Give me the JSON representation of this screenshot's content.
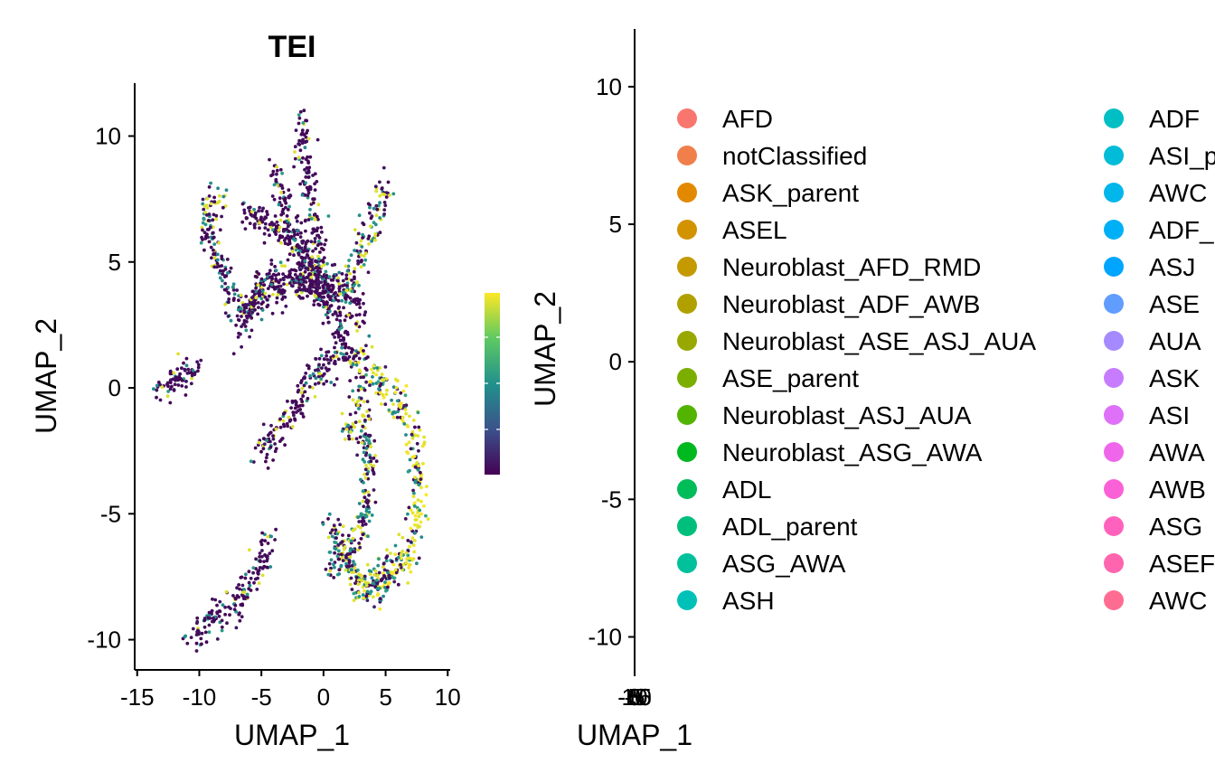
{
  "chart_data": [
    {
      "type": "scatter",
      "title": "TEI",
      "xlabel": "UMAP_1",
      "ylabel": "UMAP_2",
      "xlim": [
        -15.2,
        10.2
      ],
      "ylim": [
        -11.2,
        12.1
      ],
      "xticks": [
        -15,
        -10,
        -5,
        0,
        5,
        10
      ],
      "xtick_labels": [
        "-15",
        "-10",
        "-5",
        "0",
        "5",
        "10"
      ],
      "yticks": [
        -10,
        -5,
        0,
        5,
        10
      ],
      "ytick_labels": [
        "-10",
        "-5",
        "0",
        "5",
        "10"
      ],
      "colorscale": [
        "#440154",
        "#3b528b",
        "#21918c",
        "#5ec962",
        "#fde725"
      ],
      "colorbar": {
        "range": [
          0,
          1
        ]
      },
      "grid": false,
      "clusters": [
        {
          "path": [
            [
              -13.3,
              0.0
            ],
            [
              -11.2,
              0.5
            ],
            [
              -10.2,
              0.9
            ]
          ],
          "value": 0.25
        },
        {
          "path": [
            [
              -10.6,
              -9.9
            ],
            [
              -8.5,
              -9.0
            ],
            [
              -6.2,
              -8.2
            ],
            [
              -5.0,
              -7.0
            ],
            [
              -4.2,
              -6.0
            ]
          ],
          "value": 0.2
        },
        {
          "path": [
            [
              -5.2,
              -2.7
            ],
            [
              -3.5,
              -1.6
            ],
            [
              -2.0,
              -0.6
            ],
            [
              0.0,
              0.9
            ],
            [
              1.5,
              1.6
            ]
          ],
          "value": 0.1
        },
        {
          "path": [
            [
              -9.6,
              6.2
            ],
            [
              -9.2,
              7.3
            ],
            [
              -8.3,
              7.5
            ]
          ],
          "value": 0.5
        },
        {
          "path": [
            [
              -9.5,
              6.5
            ],
            [
              -8.4,
              5.0
            ],
            [
              -7.5,
              3.8
            ],
            [
              -6.5,
              3.0
            ],
            [
              -5.0,
              3.8
            ],
            [
              -3.0,
              4.0
            ],
            [
              -1.0,
              4.1
            ],
            [
              1.0,
              4.0
            ],
            [
              2.5,
              3.5
            ],
            [
              3.0,
              2.5
            ]
          ],
          "value": 0.1
        },
        {
          "path": [
            [
              -6.8,
              2.2
            ],
            [
              -5.5,
              3.8
            ],
            [
              -4.0,
              4.3
            ],
            [
              -2.5,
              4.4
            ],
            [
              -1.0,
              4.0
            ],
            [
              0.5,
              3.6
            ],
            [
              1.5,
              2.2
            ],
            [
              2.0,
              0.8
            ]
          ],
          "value": 0.05
        },
        {
          "path": [
            [
              -6.5,
              6.8
            ],
            [
              -5.0,
              6.8
            ],
            [
              -4.5,
              6.5
            ],
            [
              -3.2,
              6.0
            ],
            [
              -1.8,
              5.2
            ],
            [
              0.0,
              4.0
            ]
          ],
          "value": 0.05
        },
        {
          "path": [
            [
              -2.0,
              10.8
            ],
            [
              -1.5,
              9.0
            ],
            [
              -1.0,
              7.2
            ],
            [
              -0.2,
              5.0
            ],
            [
              0.5,
              3.5
            ]
          ],
          "value": 0.1
        },
        {
          "path": [
            [
              -4.0,
              8.8
            ],
            [
              -3.2,
              7.2
            ],
            [
              -2.2,
              6.0
            ],
            [
              -1.0,
              4.8
            ],
            [
              0.0,
              4.0
            ]
          ],
          "value": 0.15
        },
        {
          "path": [
            [
              5.0,
              8.1
            ],
            [
              4.2,
              6.8
            ],
            [
              3.2,
              5.6
            ],
            [
              2.5,
              4.5
            ],
            [
              1.8,
              3.6
            ]
          ],
          "value": 0.3
        },
        {
          "path": [
            [
              3.0,
              1.0
            ],
            [
              5.0,
              0.0
            ],
            [
              6.8,
              -1.2
            ],
            [
              7.6,
              -3.0
            ],
            [
              7.6,
              -5.2
            ],
            [
              6.5,
              -7.0
            ],
            [
              4.5,
              -7.9
            ],
            [
              2.8,
              -8.1
            ]
          ],
          "value": 0.8
        },
        {
          "path": [
            [
              2.5,
              1.5
            ],
            [
              3.0,
              -0.5
            ],
            [
              3.5,
              -2.5
            ],
            [
              3.6,
              -4.5
            ],
            [
              2.5,
              -6.5
            ],
            [
              0.5,
              -7.2
            ]
          ],
          "value": 0.3
        },
        {
          "path": [
            [
              0.5,
              -5.2
            ],
            [
              1.5,
              -6.5
            ],
            [
              3.0,
              -7.8
            ],
            [
              4.5,
              -7.9
            ],
            [
              6.0,
              -6.5
            ]
          ],
          "value": 0.5
        },
        {
          "path": [
            [
              1.5,
              -1.5
            ],
            [
              2.3,
              -1.9
            ]
          ],
          "value": 0.4
        }
      ]
    },
    {
      "type": "scatter",
      "xlabel": "UMAP_1",
      "ylabel": "UMAP_2",
      "ylim": [
        -11.2,
        12.1
      ],
      "yticks": [
        -10,
        -5,
        0,
        5,
        10
      ],
      "ytick_labels": [
        "-10",
        "-5",
        "0",
        "5",
        "10"
      ],
      "xtick_labels": [
        "-15",
        "-10",
        "-5",
        "0",
        "5",
        "10"
      ],
      "grid": false,
      "legend": {
        "position": "right",
        "entries": [
          {
            "label": "AFD",
            "color": "#F8766D"
          },
          {
            "label": "notClassified",
            "color": "#F07F4C"
          },
          {
            "label": "ASK_parent",
            "color": "#E38900"
          },
          {
            "label": "ASEL",
            "color": "#D39200"
          },
          {
            "label": "Neuroblast_AFD_RMD",
            "color": "#C49A00"
          },
          {
            "label": "Neuroblast_ADF_AWB",
            "color": "#B0A100"
          },
          {
            "label": "Neuroblast_ASE_ASJ_AUA",
            "color": "#99A800"
          },
          {
            "label": "ASE_parent",
            "color": "#7CAE00"
          },
          {
            "label": "Neuroblast_ASJ_AUA",
            "color": "#53B400"
          },
          {
            "label": "Neuroblast_ASG_AWA",
            "color": "#00B81F"
          },
          {
            "label": "ADL",
            "color": "#00BC59"
          },
          {
            "label": "ADL_parent",
            "color": "#00BF7D"
          },
          {
            "label": "ASG_AWA",
            "color": "#00C19C"
          },
          {
            "label": "ASH",
            "color": "#00C1B8"
          },
          {
            "label": "ADF",
            "color": "#00BFC4"
          },
          {
            "label": "ASI_p",
            "color": "#00BCD8"
          },
          {
            "label": "AWC",
            "color": "#00B6EB"
          },
          {
            "label": "ADF_",
            "color": "#00B0F6"
          },
          {
            "label": "ASJ",
            "color": "#00A5FF"
          },
          {
            "label": "ASE",
            "color": "#619CFF"
          },
          {
            "label": "AUA",
            "color": "#A58AFF"
          },
          {
            "label": "ASK",
            "color": "#C77CFF"
          },
          {
            "label": "ASI",
            "color": "#DF70F8"
          },
          {
            "label": "AWA",
            "color": "#F066EA"
          },
          {
            "label": "AWB",
            "color": "#FB61D7"
          },
          {
            "label": "ASG",
            "color": "#FF62BC"
          },
          {
            "label": "ASEF",
            "color": "#FF65AE"
          },
          {
            "label": "AWC",
            "color": "#FF6C91"
          }
        ]
      }
    }
  ]
}
